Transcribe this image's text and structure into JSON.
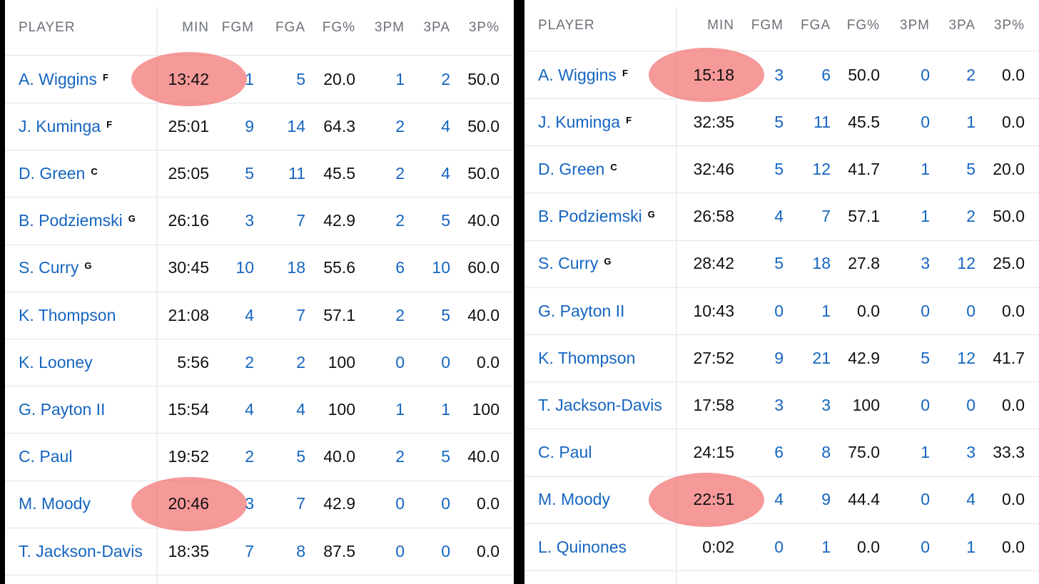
{
  "left": {
    "headers": [
      "PLAYER",
      "MIN",
      "FGM",
      "FGA",
      "FG%",
      "3PM",
      "3PA",
      "3P%"
    ],
    "rows": [
      {
        "name": "A. Wiggins",
        "pos": "F",
        "min": "13:42",
        "fgm": "1",
        "fga": "5",
        "fgp": "20.0",
        "tpm": "1",
        "tpa": "2",
        "tpp": "50.0",
        "highlight": true
      },
      {
        "name": "J. Kuminga",
        "pos": "F",
        "min": "25:01",
        "fgm": "9",
        "fga": "14",
        "fgp": "64.3",
        "tpm": "2",
        "tpa": "4",
        "tpp": "50.0"
      },
      {
        "name": "D. Green",
        "pos": "C",
        "min": "25:05",
        "fgm": "5",
        "fga": "11",
        "fgp": "45.5",
        "tpm": "2",
        "tpa": "4",
        "tpp": "50.0"
      },
      {
        "name": "B. Podziemski",
        "pos": "G",
        "min": "26:16",
        "fgm": "3",
        "fga": "7",
        "fgp": "42.9",
        "tpm": "2",
        "tpa": "5",
        "tpp": "40.0"
      },
      {
        "name": "S. Curry",
        "pos": "G",
        "min": "30:45",
        "fgm": "10",
        "fga": "18",
        "fgp": "55.6",
        "tpm": "6",
        "tpa": "10",
        "tpp": "60.0"
      },
      {
        "name": "K. Thompson",
        "pos": "",
        "min": "21:08",
        "fgm": "4",
        "fga": "7",
        "fgp": "57.1",
        "tpm": "2",
        "tpa": "5",
        "tpp": "40.0"
      },
      {
        "name": "K. Looney",
        "pos": "",
        "min": "5:56",
        "fgm": "2",
        "fga": "2",
        "fgp": "100",
        "tpm": "0",
        "tpa": "0",
        "tpp": "0.0"
      },
      {
        "name": "G. Payton II",
        "pos": "",
        "min": "15:54",
        "fgm": "4",
        "fga": "4",
        "fgp": "100",
        "tpm": "1",
        "tpa": "1",
        "tpp": "100"
      },
      {
        "name": "C. Paul",
        "pos": "",
        "min": "19:52",
        "fgm": "2",
        "fga": "5",
        "fgp": "40.0",
        "tpm": "2",
        "tpa": "5",
        "tpp": "40.0"
      },
      {
        "name": "M. Moody",
        "pos": "",
        "min": "20:46",
        "fgm": "3",
        "fga": "7",
        "fgp": "42.9",
        "tpm": "0",
        "tpa": "0",
        "tpp": "0.0",
        "highlight": true
      },
      {
        "name": "T. Jackson-Davis",
        "pos": "",
        "min": "18:35",
        "fgm": "7",
        "fga": "8",
        "fgp": "87.5",
        "tpm": "0",
        "tpa": "0",
        "tpp": "0.0"
      }
    ]
  },
  "right": {
    "headers": [
      "PLAYER",
      "MIN",
      "FGM",
      "FGA",
      "FG%",
      "3PM",
      "3PA",
      "3P%"
    ],
    "rows": [
      {
        "name": "A. Wiggins",
        "pos": "F",
        "min": "15:18",
        "fgm": "3",
        "fga": "6",
        "fgp": "50.0",
        "tpm": "0",
        "tpa": "2",
        "tpp": "0.0",
        "highlight": true
      },
      {
        "name": "J. Kuminga",
        "pos": "F",
        "min": "32:35",
        "fgm": "5",
        "fga": "11",
        "fgp": "45.5",
        "tpm": "0",
        "tpa": "1",
        "tpp": "0.0"
      },
      {
        "name": "D. Green",
        "pos": "C",
        "min": "32:46",
        "fgm": "5",
        "fga": "12",
        "fgp": "41.7",
        "tpm": "1",
        "tpa": "5",
        "tpp": "20.0"
      },
      {
        "name": "B. Podziemski",
        "pos": "G",
        "min": "26:58",
        "fgm": "4",
        "fga": "7",
        "fgp": "57.1",
        "tpm": "1",
        "tpa": "2",
        "tpp": "50.0"
      },
      {
        "name": "S. Curry",
        "pos": "G",
        "min": "28:42",
        "fgm": "5",
        "fga": "18",
        "fgp": "27.8",
        "tpm": "3",
        "tpa": "12",
        "tpp": "25.0"
      },
      {
        "name": "G. Payton II",
        "pos": "",
        "min": "10:43",
        "fgm": "0",
        "fga": "1",
        "fgp": "0.0",
        "tpm": "0",
        "tpa": "0",
        "tpp": "0.0"
      },
      {
        "name": "K. Thompson",
        "pos": "",
        "min": "27:52",
        "fgm": "9",
        "fga": "21",
        "fgp": "42.9",
        "tpm": "5",
        "tpa": "12",
        "tpp": "41.7"
      },
      {
        "name": "T. Jackson-Davis",
        "pos": "",
        "min": "17:58",
        "fgm": "3",
        "fga": "3",
        "fgp": "100",
        "tpm": "0",
        "tpa": "0",
        "tpp": "0.0"
      },
      {
        "name": "C. Paul",
        "pos": "",
        "min": "24:15",
        "fgm": "6",
        "fga": "8",
        "fgp": "75.0",
        "tpm": "1",
        "tpa": "3",
        "tpp": "33.3"
      },
      {
        "name": "M. Moody",
        "pos": "",
        "min": "22:51",
        "fgm": "4",
        "fga": "9",
        "fgp": "44.4",
        "tpm": "0",
        "tpa": "4",
        "tpp": "0.0",
        "highlight": true
      },
      {
        "name": "L. Quinones",
        "pos": "",
        "min": "0:02",
        "fgm": "0",
        "fga": "1",
        "fgp": "0.0",
        "tpm": "0",
        "tpa": "1",
        "tpp": "0.0"
      }
    ]
  },
  "colors": {
    "link": "#1565c0",
    "highlight": "#f05a5a"
  }
}
